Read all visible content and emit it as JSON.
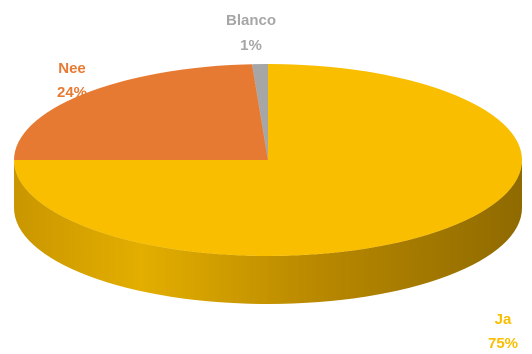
{
  "chart_data": {
    "type": "pie",
    "style": "3d",
    "title": "",
    "slices": [
      {
        "name": "Ja",
        "value": 75,
        "label": "75%",
        "color": "#F9BE00",
        "side_color": "#C99600"
      },
      {
        "name": "Nee",
        "value": 24,
        "label": "24%",
        "color": "#E77A32",
        "side_color": "#B85E22"
      },
      {
        "name": "Blanco",
        "value": 1,
        "label": "1%",
        "color": "#A6A6A6",
        "side_color": "#7F7F7F"
      }
    ],
    "legend": "none",
    "data_labels": "category and percentage, outside"
  }
}
